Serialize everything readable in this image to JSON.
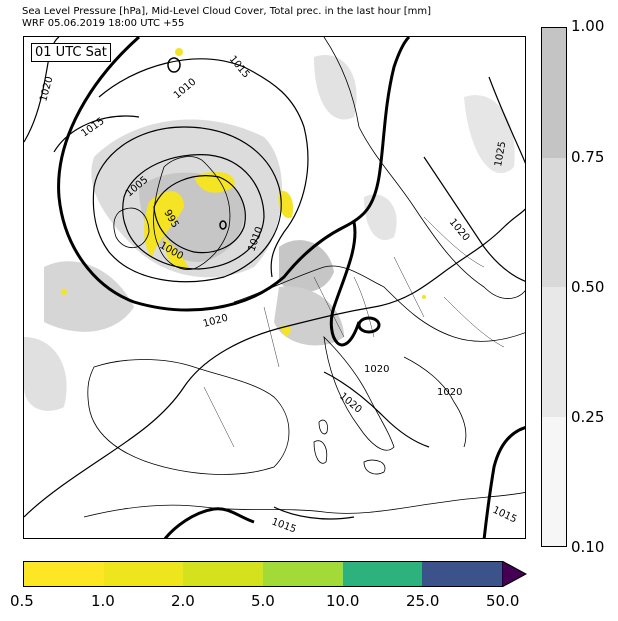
{
  "header": {
    "line1": "Sea Level Pressure [hPa], Mid-Level Cloud Cover, Total prec. in the last hour [mm]",
    "line2": "WRF 05.06.2019 18:00 UTC +55"
  },
  "map": {
    "valid_time": "01 UTC Sat",
    "isobar_labels": [
      "1020",
      "1010",
      "1015",
      "1015",
      "1005",
      "995",
      "1000",
      "1010",
      "1020",
      "1025",
      "1020",
      "1020",
      "1020",
      "1020",
      "1015",
      "1015"
    ],
    "colors": {
      "cloud_low": "#ebebeb",
      "cloud_mid": "#d9d9d9",
      "cloud_high": "#c4c4c4",
      "precip": "#f5e423",
      "coast": "#000000",
      "isobar": "#000000"
    }
  },
  "cloud_colorbar": {
    "labels": [
      "1.00",
      "0.75",
      "0.50",
      "0.25",
      "0.10"
    ],
    "colors": [
      "#c4c4c4",
      "#d9d9d9",
      "#e8e8e8",
      "#f6f6f6"
    ]
  },
  "precip_colorbar": {
    "labels": [
      "0.5",
      "1.0",
      "2.0",
      "5.0",
      "10.0",
      "25.0",
      "50.0"
    ],
    "colors": [
      "#fde725",
      "#eee51d",
      "#d3e21d",
      "#a2da37",
      "#2db27d",
      "#3b528b",
      "#440154"
    ]
  }
}
